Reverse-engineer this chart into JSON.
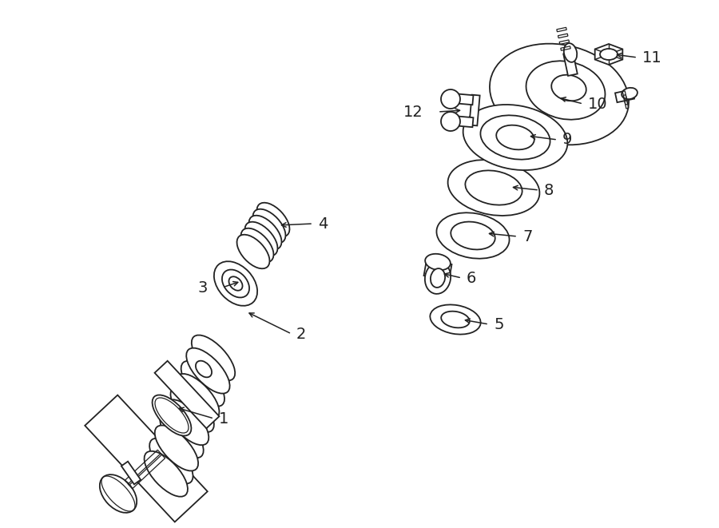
{
  "bg_color": "#ffffff",
  "line_color": "#222222",
  "lw": 1.3,
  "fig_width": 9.0,
  "fig_height": 6.61,
  "dpi": 100
}
